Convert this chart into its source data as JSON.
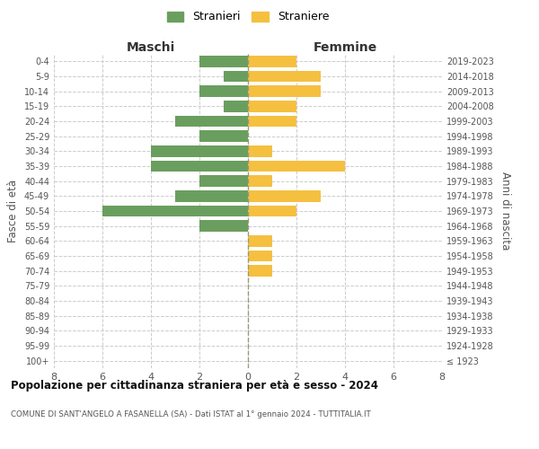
{
  "age_groups": [
    "100+",
    "95-99",
    "90-94",
    "85-89",
    "80-84",
    "75-79",
    "70-74",
    "65-69",
    "60-64",
    "55-59",
    "50-54",
    "45-49",
    "40-44",
    "35-39",
    "30-34",
    "25-29",
    "20-24",
    "15-19",
    "10-14",
    "5-9",
    "0-4"
  ],
  "birth_years": [
    "≤ 1923",
    "1924-1928",
    "1929-1933",
    "1934-1938",
    "1939-1943",
    "1944-1948",
    "1949-1953",
    "1954-1958",
    "1959-1963",
    "1964-1968",
    "1969-1973",
    "1974-1978",
    "1979-1983",
    "1984-1988",
    "1989-1993",
    "1994-1998",
    "1999-2003",
    "2004-2008",
    "2009-2013",
    "2014-2018",
    "2019-2023"
  ],
  "males": [
    0,
    0,
    0,
    0,
    0,
    0,
    0,
    0,
    0,
    2,
    6,
    3,
    2,
    4,
    4,
    2,
    3,
    1,
    2,
    1,
    2
  ],
  "females": [
    0,
    0,
    0,
    0,
    0,
    0,
    1,
    1,
    1,
    0,
    2,
    3,
    1,
    4,
    1,
    0,
    2,
    2,
    3,
    3,
    2
  ],
  "male_color": "#6a9e5e",
  "female_color": "#f5c040",
  "xlim": 8,
  "title_main": "Popolazione per cittadinanza straniera per età e sesso - 2024",
  "title_sub": "COMUNE DI SANT'ANGELO A FASANELLA (SA) - Dati ISTAT al 1° gennaio 2024 - TUTTITALIA.IT",
  "ylabel_left": "Fasce di età",
  "ylabel_right": "Anni di nascita",
  "xlabel_left": "Maschi",
  "xlabel_right": "Femmine",
  "legend_male": "Stranieri",
  "legend_female": "Straniere",
  "background_color": "#ffffff",
  "grid_color": "#cccccc"
}
